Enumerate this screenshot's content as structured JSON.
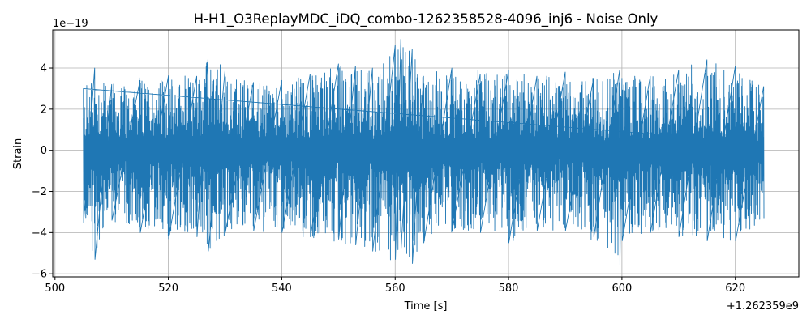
{
  "chart_data": {
    "type": "line",
    "title": "H-H1_O3ReplayMDC_iDQ_combo-1262358528-4096_inj6 - Noise Only",
    "xlabel": "Time [s]",
    "ylabel": "Strain",
    "x_offset_label": "+1.262359e9",
    "y_scale_label": "1e−19",
    "xlim": [
      499.6,
      631.2
    ],
    "ylim": [
      -6.15,
      5.85
    ],
    "x_ticks": [
      500,
      520,
      540,
      560,
      580,
      600,
      620
    ],
    "x_tick_labels": [
      "500",
      "520",
      "540",
      "560",
      "580",
      "600",
      "620"
    ],
    "y_ticks": [
      -6,
      -4,
      -2,
      0,
      2,
      4
    ],
    "y_tick_labels": [
      "−6",
      "−4",
      "−2",
      "0",
      "2",
      "4"
    ],
    "grid": true,
    "series": [
      {
        "color": "#1f77b4",
        "t_start": 505.0,
        "t_end": 625.0,
        "envelope": {
          "t": [
            505,
            507,
            510,
            515,
            520,
            525,
            527,
            530,
            535,
            540,
            545,
            550,
            553,
            556,
            560,
            561,
            563,
            565,
            570,
            575,
            580,
            585,
            590,
            595,
            599.6,
            600,
            605,
            610,
            615,
            620,
            625
          ],
          "upper": [
            3.0,
            4.0,
            3.2,
            3.4,
            3.6,
            3.6,
            4.5,
            3.9,
            3.3,
            3.4,
            3.7,
            4.2,
            4.1,
            4.0,
            5.1,
            5.4,
            4.9,
            3.6,
            4.0,
            3.7,
            3.9,
            3.6,
            3.8,
            3.5,
            3.9,
            3.5,
            3.6,
            3.9,
            4.4,
            4.1,
            3.1
          ],
          "lower": [
            -3.5,
            -5.3,
            -3.4,
            -4.0,
            -4.3,
            -4.2,
            -4.9,
            -4.0,
            -3.9,
            -4.0,
            -4.2,
            -4.3,
            -4.6,
            -4.9,
            -5.3,
            -4.8,
            -5.5,
            -4.5,
            -3.9,
            -4.0,
            -4.5,
            -3.9,
            -3.9,
            -4.2,
            -5.6,
            -4.4,
            -4.0,
            -4.2,
            -4.4,
            -4.4,
            -3.3
          ]
        }
      }
    ]
  }
}
